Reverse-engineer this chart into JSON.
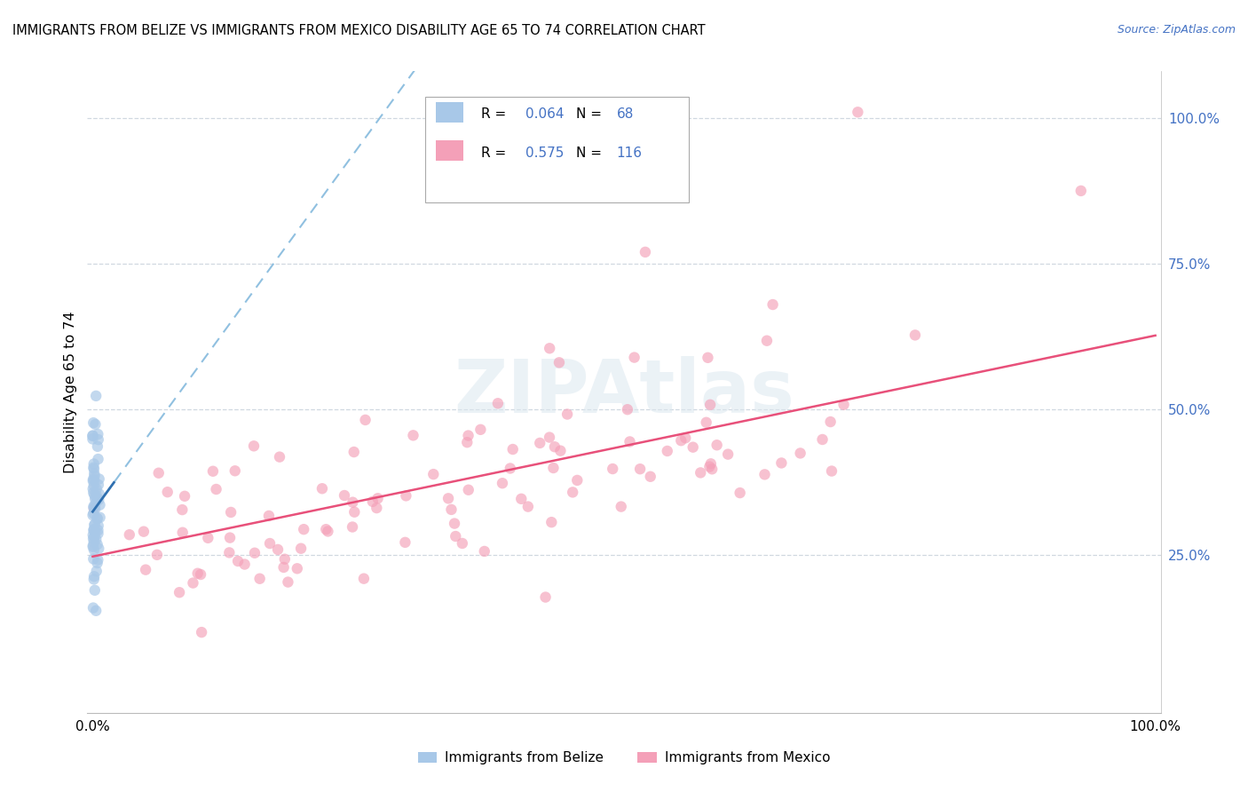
{
  "title": "IMMIGRANTS FROM BELIZE VS IMMIGRANTS FROM MEXICO DISABILITY AGE 65 TO 74 CORRELATION CHART",
  "source": "Source: ZipAtlas.com",
  "ylabel": "Disability Age 65 to 74",
  "belize_R": 0.064,
  "belize_N": 68,
  "mexico_R": 0.575,
  "mexico_N": 116,
  "belize_color": "#a8c8e8",
  "mexico_color": "#f4a0b8",
  "belize_line_color": "#3070b0",
  "mexico_line_color": "#e8507a",
  "belize_dashed_color": "#90c0e0",
  "grid_color": "#d0d8e0",
  "tick_color_right": "#4472c4",
  "watermark": "ZIPAtlas",
  "belize_intercept": 0.315,
  "belize_slope_full": 0.44,
  "mexico_intercept": 0.24,
  "mexico_slope_full": 0.38
}
